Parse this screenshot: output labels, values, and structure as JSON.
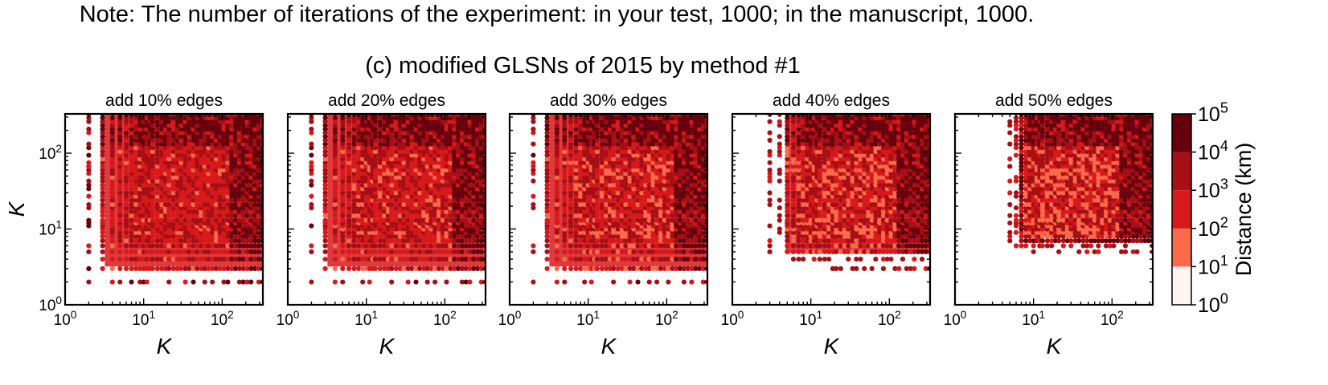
{
  "note": "Note: The number of iterations of the experiment: in your test, 1000; in the manuscript, 1000.",
  "figure_title": "(c) modified GLSNs of 2015 by method #1",
  "chart_data": [
    {
      "type": "scatter",
      "title": "add 10% edges",
      "xlabel": "K",
      "ylabel": "K",
      "x_scale": "log",
      "y_scale": "log",
      "xlim": [
        1,
        330
      ],
      "ylim": [
        1,
        330
      ],
      "x_ticks": [
        "10^0",
        "10^1",
        "10^2"
      ],
      "y_ticks": [
        "10^0",
        "10^1",
        "10^2"
      ],
      "min_x": 2,
      "min_y": 2,
      "colorbar_label": "Distance (km)"
    },
    {
      "type": "scatter",
      "title": "add 20% edges",
      "xlabel": "K",
      "x_scale": "log",
      "y_scale": "log",
      "xlim": [
        1,
        330
      ],
      "ylim": [
        1,
        330
      ],
      "x_ticks": [
        "10^0",
        "10^1",
        "10^2"
      ],
      "min_x": 2,
      "min_y": 2
    },
    {
      "type": "scatter",
      "title": "add 30% edges",
      "xlabel": "K",
      "x_scale": "log",
      "y_scale": "log",
      "xlim": [
        1,
        330
      ],
      "ylim": [
        1,
        330
      ],
      "x_ticks": [
        "10^0",
        "10^1",
        "10^2"
      ],
      "min_x": 2,
      "min_y": 2
    },
    {
      "type": "scatter",
      "title": "add 40% edges",
      "xlabel": "K",
      "x_scale": "log",
      "y_scale": "log",
      "xlim": [
        1,
        330
      ],
      "ylim": [
        1,
        330
      ],
      "x_ticks": [
        "10^0",
        "10^1",
        "10^2"
      ],
      "min_x": 3,
      "min_y": 3
    },
    {
      "type": "scatter",
      "title": "add 50% edges",
      "xlabel": "K",
      "x_scale": "log",
      "y_scale": "log",
      "xlim": [
        1,
        330
      ],
      "ylim": [
        1,
        330
      ],
      "x_ticks": [
        "10^0",
        "10^1",
        "10^2"
      ],
      "min_x": 5,
      "min_y": 5
    }
  ],
  "colorbar": {
    "label": "Distance (km)",
    "scale": "log",
    "range": [
      1,
      100000
    ],
    "ticks": [
      "10^0",
      "10^1",
      "10^2",
      "10^3",
      "10^4",
      "10^5"
    ],
    "colors": [
      "#fff5f0",
      "#fcbba1",
      "#fb6a4a",
      "#d7191c",
      "#a50f15",
      "#67000d"
    ]
  }
}
